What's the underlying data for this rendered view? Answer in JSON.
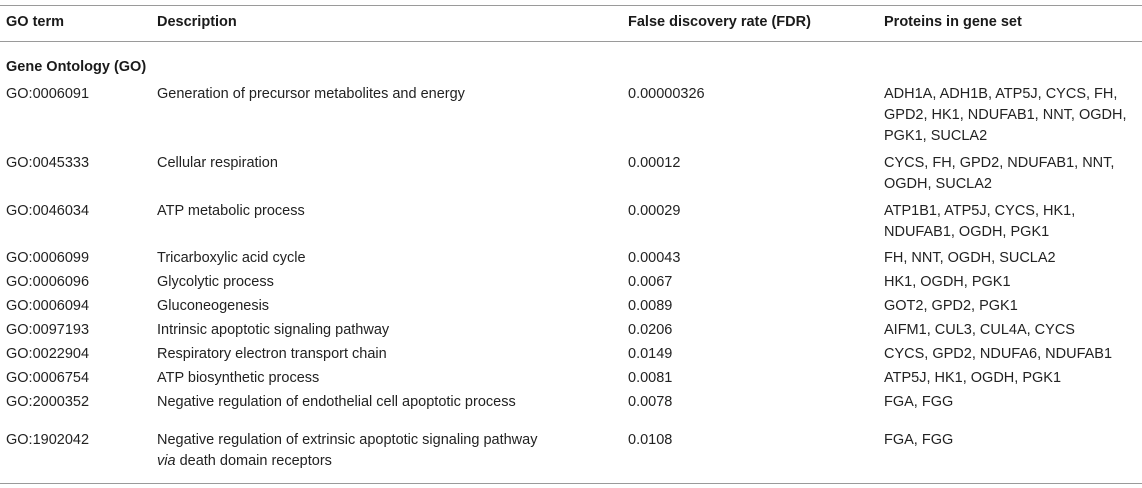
{
  "headers": {
    "go_term": "GO term",
    "description": "Description",
    "fdr": "False discovery rate (FDR)",
    "proteins": "Proteins in gene set"
  },
  "section_title": "Gene Ontology (GO)",
  "rows": [
    {
      "go": "GO:0006091",
      "desc": [
        "Generation of precursor metabolites and energy"
      ],
      "fdr": "0.00000326",
      "proteins": [
        "ADH1A, ADH1B, ATP5J, CYCS, FH,",
        "GPD2, HK1, NDUFAB1, NNT, OGDH,",
        "PGK1, SUCLA2"
      ]
    },
    {
      "go": "GO:0045333",
      "desc": [
        "Cellular respiration"
      ],
      "fdr": "0.00012",
      "proteins": [
        "CYCS, FH, GPD2, NDUFAB1, NNT,",
        "OGDH, SUCLA2"
      ]
    },
    {
      "go": "GO:0046034",
      "desc": [
        "ATP metabolic process"
      ],
      "fdr": "0.00029",
      "proteins": [
        "ATP1B1, ATP5J, CYCS, HK1,",
        "NDUFAB1, OGDH, PGK1"
      ]
    },
    {
      "go": "GO:0006099",
      "desc": [
        "Tricarboxylic acid cycle"
      ],
      "fdr": "0.00043",
      "proteins": [
        "FH, NNT, OGDH, SUCLA2"
      ]
    },
    {
      "go": "GO:0006096",
      "desc": [
        "Glycolytic process"
      ],
      "fdr": "0.0067",
      "proteins": [
        "HK1, OGDH, PGK1"
      ]
    },
    {
      "go": "GO:0006094",
      "desc": [
        "Gluconeogenesis"
      ],
      "fdr": "0.0089",
      "proteins": [
        "GOT2, GPD2, PGK1"
      ]
    },
    {
      "go": "GO:0097193",
      "desc": [
        "Intrinsic apoptotic signaling pathway"
      ],
      "fdr": "0.0206",
      "proteins": [
        "AIFM1, CUL3, CUL4A, CYCS"
      ]
    },
    {
      "go": "GO:0022904",
      "desc": [
        "Respiratory electron transport chain"
      ],
      "fdr": "0.0149",
      "proteins": [
        "CYCS, GPD2, NDUFA6, NDUFAB1"
      ]
    },
    {
      "go": "GO:0006754",
      "desc": [
        "ATP biosynthetic process"
      ],
      "fdr": "0.0081",
      "proteins": [
        "ATP5J, HK1, OGDH, PGK1"
      ]
    },
    {
      "go": "GO:2000352",
      "desc": [
        "Negative regulation of endothelial cell apoptotic process"
      ],
      "fdr": "0.0078",
      "proteins": [
        "FGA, FGG"
      ]
    },
    {
      "go": "GO:1902042",
      "desc": [
        "Negative regulation of extrinsic apoptotic signaling pathway",
        "via death domain receptors"
      ],
      "desc_italic_word": "via",
      "fdr": "0.0108",
      "proteins": [
        "FGA, FGG"
      ]
    }
  ]
}
